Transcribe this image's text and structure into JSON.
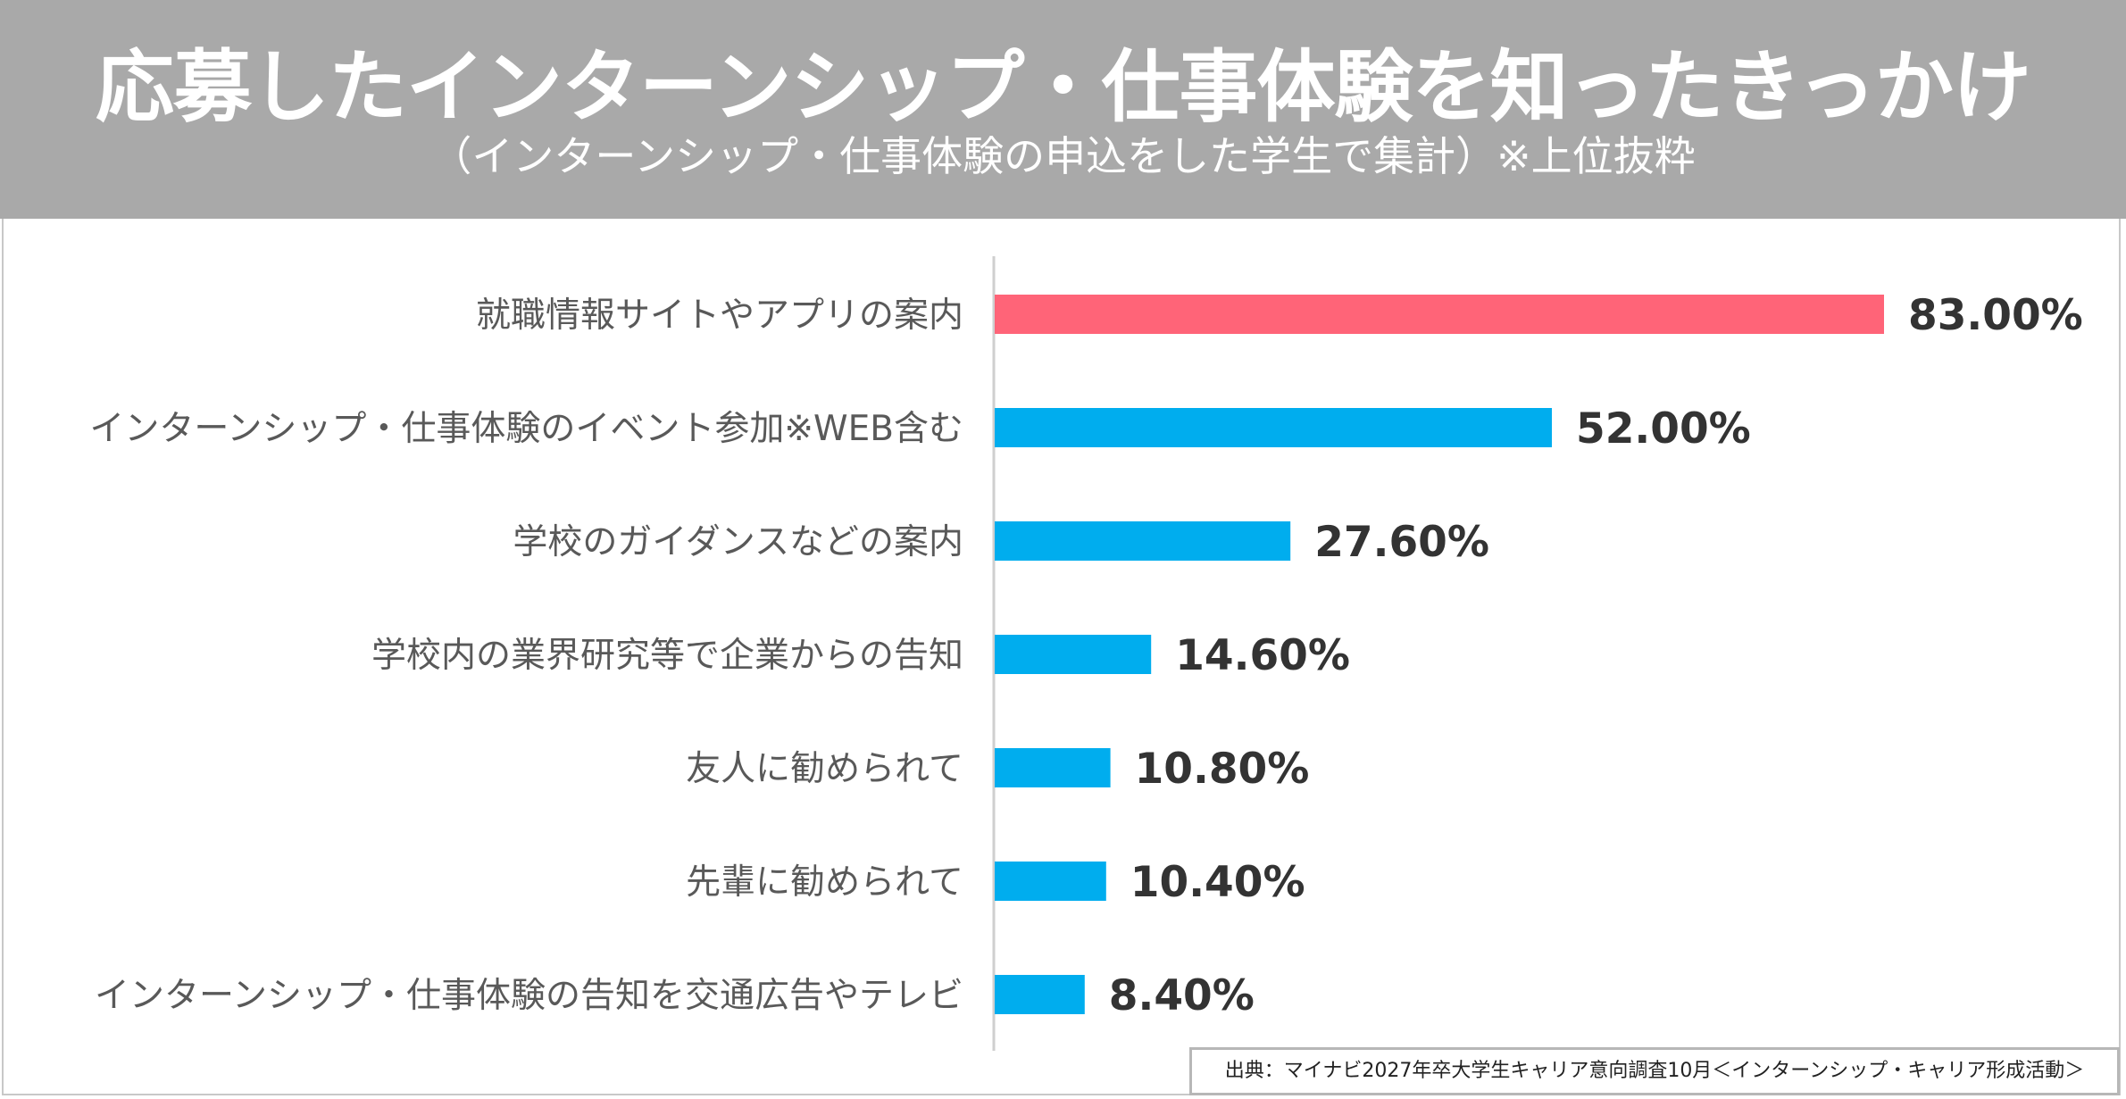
{
  "header": {
    "title": "応募したインターンシップ・仕事体験を知ったきっかけ",
    "subtitle": "（インターンシップ・仕事体験の申込をした学生で集計）※上位抜粋"
  },
  "colors": {
    "header_bg": "#a9a9a9",
    "highlight_bar": "#ff6478",
    "bar": "#00adee",
    "label_text": "#595959",
    "value_text": "#333333"
  },
  "chart_data": {
    "type": "bar",
    "orientation": "horizontal",
    "title": "応募したインターンシップ・仕事体験を知ったきっかけ",
    "subtitle": "（インターンシップ・仕事体験の申込をした学生で集計）※上位抜粋",
    "categories": [
      "就職情報サイトやアプリの案内",
      "インターンシップ・仕事体験のイベント参加※WEB含む",
      "学校のガイダンスなどの案内",
      "学校内の業界研究等で企業からの告知",
      "友人に勧められて",
      "先輩に勧められて",
      "インターンシップ・仕事体験の告知を交通広告やテレビ"
    ],
    "values": [
      83.0,
      52.0,
      27.6,
      14.6,
      10.8,
      10.4,
      8.4
    ],
    "value_labels": [
      "83.00%",
      "52.00%",
      "27.60%",
      "14.60%",
      "10.80%",
      "10.40%",
      "8.40%"
    ],
    "highlight_index": 0,
    "xlim": [
      0,
      100
    ],
    "unit": "%",
    "grid": false
  },
  "footer": {
    "source": "出典：マイナビ2027年卒大学生キャリア意向調査10月＜インターンシップ・キャリア形成活動＞"
  }
}
